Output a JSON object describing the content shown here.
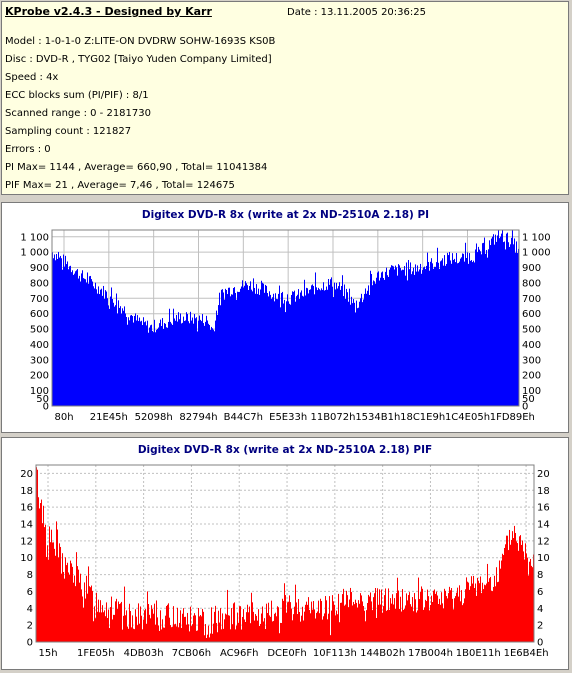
{
  "header": {
    "title": "KProbe v2.4.3 - Designed by Karr",
    "date": "Date : 13.11.2005 20:36:25",
    "lines": [
      "Model : 1-0-1-0 Z:LITE-ON DVDRW SOHW-1693S KS0B",
      "Disc : DVD-R , TYG02 [Taiyo Yuden Company Limited]",
      "Speed : 4x",
      "ECC blocks sum (PI/PIF) : 8/1",
      "Scanned range : 0 - 2181730",
      "Sampling count : 121827",
      "Errors : 0",
      "PI Max= 1144 , Average= 660,90 , Total= 11041384",
      "PIF Max= 21 , Average= 7,46 , Total= 124675"
    ]
  },
  "colors": {
    "pi": "#0000ff",
    "pif": "#ff0000",
    "title": "#000080"
  },
  "chart_data": [
    {
      "type": "area",
      "title": "Digitex DVD-R 8x (write at 2x ND-2510A 2.18) PI",
      "xlabel": "",
      "ylabel": "",
      "ylim": [
        0,
        1144
      ],
      "y_ticks": [
        "0",
        "50",
        "100",
        "200",
        "300",
        "400",
        "500",
        "600",
        "700",
        "800",
        "900",
        "1 000",
        "1 100"
      ],
      "y_tick_values": [
        0,
        50,
        100,
        200,
        300,
        400,
        500,
        600,
        700,
        800,
        900,
        1000,
        1100
      ],
      "x_ticks": [
        "80h",
        "21E45h",
        "52098h",
        "82794h",
        "B44C7h",
        "E5E33h",
        "11B072h",
        "1534B1h",
        "18C1E9h",
        "1C4E05h",
        "1FD89Eh"
      ],
      "grid": true,
      "series": [
        {
          "x": [
            0,
            0.03,
            0.06,
            0.09,
            0.12,
            0.15,
            0.18,
            0.21,
            0.24,
            0.27,
            0.3,
            0.33,
            0.345,
            0.36,
            0.39,
            0.42,
            0.45,
            0.48,
            0.51,
            0.54,
            0.57,
            0.6,
            0.63,
            0.65,
            0.67,
            0.7,
            0.73,
            0.76,
            0.79,
            0.82,
            0.85,
            0.88,
            0.91,
            0.94,
            0.96,
            0.98,
            1.0
          ],
          "values": [
            1000,
            930,
            850,
            790,
            720,
            640,
            560,
            510,
            540,
            575,
            570,
            560,
            490,
            720,
            770,
            790,
            760,
            720,
            700,
            730,
            780,
            800,
            740,
            640,
            740,
            850,
            880,
            890,
            900,
            930,
            960,
            960,
            980,
            1060,
            1120,
            1080,
            1020
          ]
        }
      ]
    },
    {
      "type": "bar",
      "title": "Digitex DVD-R 8x (write at 2x ND-2510A 2.18) PIF",
      "xlabel": "",
      "ylabel": "",
      "ylim": [
        0,
        21
      ],
      "y_ticks": [
        "0",
        "2",
        "4",
        "6",
        "8",
        "10",
        "12",
        "14",
        "16",
        "18",
        "20"
      ],
      "y_tick_values": [
        0,
        2,
        4,
        6,
        8,
        10,
        12,
        14,
        16,
        18,
        20
      ],
      "x_ticks": [
        "15h",
        "1FE05h",
        "4DB03h",
        "7CB06h",
        "AC96Fh",
        "DCE0Fh",
        "10F113h",
        "144B02h",
        "17B004h",
        "1B0E11h",
        "1E6B4Eh"
      ],
      "grid": true,
      "series": [
        {
          "x": [
            0,
            0.01,
            0.02,
            0.04,
            0.06,
            0.09,
            0.12,
            0.15,
            0.18,
            0.22,
            0.26,
            0.3,
            0.34,
            0.38,
            0.42,
            0.46,
            0.5,
            0.54,
            0.58,
            0.62,
            0.66,
            0.7,
            0.74,
            0.78,
            0.82,
            0.86,
            0.9,
            0.93,
            0.95,
            0.96,
            0.98,
            1.0
          ],
          "values": [
            20,
            16,
            13,
            11,
            9,
            7,
            5,
            4,
            3,
            3,
            3,
            3,
            2,
            3,
            3,
            3,
            4,
            4,
            4,
            5,
            5,
            5,
            5,
            5,
            5,
            6,
            7,
            8,
            12,
            13,
            11,
            10
          ]
        }
      ]
    }
  ]
}
